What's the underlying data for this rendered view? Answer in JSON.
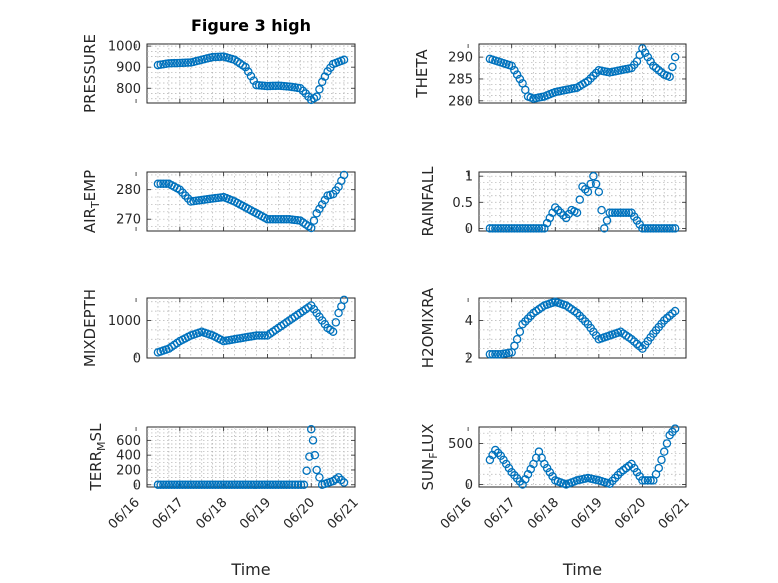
{
  "figure_title": "Figure 3 high",
  "colors": {
    "marker": "#0072bd",
    "axis": "#262626",
    "grid": "#b0b0b0"
  },
  "chart_data": [
    {
      "type": "scatter",
      "id": "pressure",
      "ylabel": "PRESSURE",
      "xlim": [
        "06/16 06:00",
        "06/21"
      ],
      "ylim": [
        730,
        1010
      ],
      "yticks": [
        800,
        900,
        1000
      ],
      "yticklabels": [
        "800",
        "900",
        "1000"
      ],
      "grid": true,
      "series": [
        {
          "points": [
            [
              "06/16 12:00",
              910
            ],
            [
              "06/16 18:00",
              918
            ],
            [
              "06/17 00:00",
              920
            ],
            [
              "06/17 06:00",
              922
            ],
            [
              "06/17 12:00",
              935
            ],
            [
              "06/17 18:00",
              948
            ],
            [
              "06/18 00:00",
              950
            ],
            [
              "06/18 06:00",
              935
            ],
            [
              "06/18 12:00",
              900
            ],
            [
              "06/18 18:00",
              815
            ],
            [
              "06/19 00:00",
              810
            ],
            [
              "06/19 06:00",
              812
            ],
            [
              "06/19 12:00",
              808
            ],
            [
              "06/19 18:00",
              800
            ],
            [
              "06/19 21:00",
              775
            ],
            [
              "06/20 00:00",
              745
            ],
            [
              "06/20 03:00",
              760
            ],
            [
              "06/20 06:00",
              830
            ],
            [
              "06/20 09:00",
              880
            ],
            [
              "06/20 12:00",
              915
            ],
            [
              "06/20 15:00",
              925
            ],
            [
              "06/20 18:00",
              935
            ]
          ]
        }
      ]
    },
    {
      "type": "scatter",
      "id": "theta",
      "ylabel": "THETA",
      "xlim": [
        "06/16 06:00",
        "06/21"
      ],
      "ylim": [
        279.5,
        293
      ],
      "yticks": [
        280,
        285,
        290
      ],
      "yticklabels": [
        "280",
        "285",
        "290"
      ],
      "grid": true,
      "series": [
        {
          "points": [
            [
              "06/16 12:00",
              289.6
            ],
            [
              "06/16 18:00",
              288.8
            ],
            [
              "06/17 00:00",
              288.0
            ],
            [
              "06/17 06:00",
              284.0
            ],
            [
              "06/17 09:00",
              281.0
            ],
            [
              "06/17 12:00",
              280.5
            ],
            [
              "06/17 18:00",
              281.0
            ],
            [
              "06/18 00:00",
              282.0
            ],
            [
              "06/18 06:00",
              282.5
            ],
            [
              "06/18 12:00",
              283.0
            ],
            [
              "06/18 18:00",
              284.5
            ],
            [
              "06/19 00:00",
              287.0
            ],
            [
              "06/19 06:00",
              286.5
            ],
            [
              "06/19 12:00",
              287.0
            ],
            [
              "06/19 18:00",
              287.5
            ],
            [
              "06/19 21:00",
              289.0
            ],
            [
              "06/20 00:00",
              292.0
            ],
            [
              "06/20 03:00",
              290.0
            ],
            [
              "06/20 06:00",
              288.0
            ],
            [
              "06/20 12:00",
              286.0
            ],
            [
              "06/20 15:00",
              285.5
            ],
            [
              "06/20 18:00",
              290.0
            ]
          ]
        }
      ]
    },
    {
      "type": "scatter",
      "id": "air_temp",
      "ylabel": "AIR",
      "ylabel_sub": "T",
      "ylabel_rest": "EMP",
      "xlim": [
        "06/16 06:00",
        "06/21"
      ],
      "ylim": [
        266,
        286
      ],
      "yticks": [
        270,
        280
      ],
      "yticklabels": [
        "270",
        "280"
      ],
      "grid": true,
      "series": [
        {
          "points": [
            [
              "06/16 12:00",
              282.0
            ],
            [
              "06/16 18:00",
              282.0
            ],
            [
              "06/17 00:00",
              280.0
            ],
            [
              "06/17 06:00",
              276.0
            ],
            [
              "06/17 12:00",
              276.5
            ],
            [
              "06/17 18:00",
              277.0
            ],
            [
              "06/18 00:00",
              277.5
            ],
            [
              "06/18 06:00",
              276.0
            ],
            [
              "06/18 12:00",
              274.0
            ],
            [
              "06/18 18:00",
              272.0
            ],
            [
              "06/19 00:00",
              270.0
            ],
            [
              "06/19 06:00",
              270.0
            ],
            [
              "06/19 12:00",
              270.0
            ],
            [
              "06/19 18:00",
              269.5
            ],
            [
              "06/20 00:00",
              267.0
            ],
            [
              "06/20 03:00",
              272.0
            ],
            [
              "06/20 06:00",
              275.0
            ],
            [
              "06/20 09:00",
              278.0
            ],
            [
              "06/20 12:00",
              278.5
            ],
            [
              "06/20 15:00",
              281.0
            ],
            [
              "06/20 18:00",
              285.0
            ]
          ]
        }
      ]
    },
    {
      "type": "scatter",
      "id": "rainfall",
      "ylabel": "RAINFALL",
      "xlim": [
        "06/16 06:00",
        "06/21"
      ],
      "ylim": [
        -0.05,
        1.08
      ],
      "yticks": [
        0,
        0.5,
        1
      ],
      "yticklabels": [
        "0",
        "0.5",
        "1"
      ],
      "grid": true,
      "series": [
        {
          "points": [
            [
              "06/16 12:00",
              0
            ],
            [
              "06/17 00:00",
              0
            ],
            [
              "06/17 12:00",
              0
            ],
            [
              "06/17 18:00",
              0
            ],
            [
              "06/18 00:00",
              0.4
            ],
            [
              "06/18 06:00",
              0.2
            ],
            [
              "06/18 09:00",
              0.35
            ],
            [
              "06/18 12:00",
              0.3
            ],
            [
              "06/18 15:00",
              0.8
            ],
            [
              "06/18 18:00",
              0.7
            ],
            [
              "06/18 21:00",
              1.0
            ],
            [
              "06/19 00:00",
              0.7
            ],
            [
              "06/19 03:00",
              0
            ],
            [
              "06/19 06:00",
              0.3
            ],
            [
              "06/19 12:00",
              0.3
            ],
            [
              "06/19 18:00",
              0.3
            ],
            [
              "06/20 00:00",
              0
            ],
            [
              "06/20 12:00",
              0
            ],
            [
              "06/20 18:00",
              0
            ]
          ]
        }
      ]
    },
    {
      "type": "scatter",
      "id": "mixdepth",
      "ylabel": "MIXDEPTH",
      "xlim": [
        "06/16 06:00",
        "06/21"
      ],
      "ylim": [
        0,
        1600
      ],
      "yticks": [
        0,
        1000
      ],
      "yticklabels": [
        "0",
        "1000"
      ],
      "grid": true,
      "series": [
        {
          "points": [
            [
              "06/16 12:00",
              150
            ],
            [
              "06/16 18:00",
              250
            ],
            [
              "06/17 00:00",
              450
            ],
            [
              "06/17 06:00",
              600
            ],
            [
              "06/17 12:00",
              700
            ],
            [
              "06/17 18:00",
              600
            ],
            [
              "06/18 00:00",
              450
            ],
            [
              "06/18 06:00",
              500
            ],
            [
              "06/18 12:00",
              550
            ],
            [
              "06/18 18:00",
              600
            ],
            [
              "06/19 00:00",
              600
            ],
            [
              "06/19 06:00",
              800
            ],
            [
              "06/19 12:00",
              1000
            ],
            [
              "06/19 18:00",
              1200
            ],
            [
              "06/20 00:00",
              1400
            ],
            [
              "06/20 06:00",
              1000
            ],
            [
              "06/20 09:00",
              800
            ],
            [
              "06/20 12:00",
              700
            ],
            [
              "06/20 15:00",
              1200
            ],
            [
              "06/20 18:00",
              1550
            ]
          ]
        }
      ]
    },
    {
      "type": "scatter",
      "id": "h2omixra",
      "ylabel": "H2OMIXRA",
      "xlim": [
        "06/16 06:00",
        "06/21"
      ],
      "ylim": [
        2,
        5.2
      ],
      "yticks": [
        2,
        4
      ],
      "yticklabels": [
        "2",
        "4"
      ],
      "grid": true,
      "series": [
        {
          "points": [
            [
              "06/16 12:00",
              2.2
            ],
            [
              "06/16 18:00",
              2.2
            ],
            [
              "06/17 00:00",
              2.3
            ],
            [
              "06/17 03:00",
              3.0
            ],
            [
              "06/17 06:00",
              3.8
            ],
            [
              "06/17 12:00",
              4.4
            ],
            [
              "06/17 18:00",
              4.8
            ],
            [
              "06/18 00:00",
              5.0
            ],
            [
              "06/18 06:00",
              4.8
            ],
            [
              "06/18 12:00",
              4.4
            ],
            [
              "06/18 18:00",
              3.8
            ],
            [
              "06/19 00:00",
              3.0
            ],
            [
              "06/19 06:00",
              3.2
            ],
            [
              "06/19 12:00",
              3.4
            ],
            [
              "06/19 18:00",
              3.0
            ],
            [
              "06/20 00:00",
              2.5
            ],
            [
              "06/20 06:00",
              3.3
            ],
            [
              "06/20 12:00",
              4.0
            ],
            [
              "06/20 18:00",
              4.5
            ]
          ]
        }
      ]
    },
    {
      "type": "scatter",
      "id": "terr_msl",
      "ylabel": "TERR",
      "ylabel_sub": "M",
      "ylabel_rest": "SL",
      "xlim": [
        "06/16 06:00",
        "06/21"
      ],
      "ylim": [
        -30,
        780
      ],
      "yticks": [
        0,
        200,
        400,
        600
      ],
      "yticklabels": [
        "0",
        "200",
        "400",
        "600"
      ],
      "grid": true,
      "series": [
        {
          "points": [
            [
              "06/16 12:00",
              0
            ],
            [
              "06/17 00:00",
              0
            ],
            [
              "06/17 12:00",
              0
            ],
            [
              "06/18 00:00",
              0
            ],
            [
              "06/18 12:00",
              0
            ],
            [
              "06/19 00:00",
              0
            ],
            [
              "06/19 12:00",
              0
            ],
            [
              "06/19 20:00",
              0
            ],
            [
              "06/19 23:00",
              380
            ],
            [
              "06/20 00:00",
              750
            ],
            [
              "06/20 01:00",
              600
            ],
            [
              "06/20 02:00",
              400
            ],
            [
              "06/20 03:00",
              200
            ],
            [
              "06/20 06:00",
              0
            ],
            [
              "06/20 12:00",
              50
            ],
            [
              "06/20 15:00",
              100
            ],
            [
              "06/20 18:00",
              30
            ]
          ]
        }
      ]
    },
    {
      "type": "scatter",
      "id": "sun_flux",
      "ylabel": "SUN",
      "ylabel_sub": "F",
      "ylabel_rest": "LUX",
      "xlim": [
        "06/16 06:00",
        "06/21"
      ],
      "ylim": [
        -30,
        700
      ],
      "yticks": [
        0,
        500
      ],
      "yticklabels": [
        "0",
        "500"
      ],
      "grid": true,
      "series": [
        {
          "points": [
            [
              "06/16 12:00",
              300
            ],
            [
              "06/16 15:00",
              420
            ],
            [
              "06/16 18:00",
              350
            ],
            [
              "06/17 00:00",
              150
            ],
            [
              "06/17 06:00",
              0
            ],
            [
              "06/17 12:00",
              250
            ],
            [
              "06/17 15:00",
              400
            ],
            [
              "06/17 18:00",
              250
            ],
            [
              "06/18 00:00",
              50
            ],
            [
              "06/18 06:00",
              0
            ],
            [
              "06/18 12:00",
              50
            ],
            [
              "06/18 18:00",
              80
            ],
            [
              "06/19 00:00",
              50
            ],
            [
              "06/19 06:00",
              10
            ],
            [
              "06/19 12:00",
              150
            ],
            [
              "06/19 18:00",
              250
            ],
            [
              "06/20 00:00",
              50
            ],
            [
              "06/20 06:00",
              50
            ],
            [
              "06/20 09:00",
              200
            ],
            [
              "06/20 12:00",
              400
            ],
            [
              "06/20 15:00",
              600
            ],
            [
              "06/20 18:00",
              680
            ]
          ]
        }
      ]
    }
  ],
  "x_axis": {
    "ticks": [
      "06/16",
      "06/17",
      "06/18",
      "06/19",
      "06/20",
      "06/21"
    ],
    "label": "Time"
  }
}
